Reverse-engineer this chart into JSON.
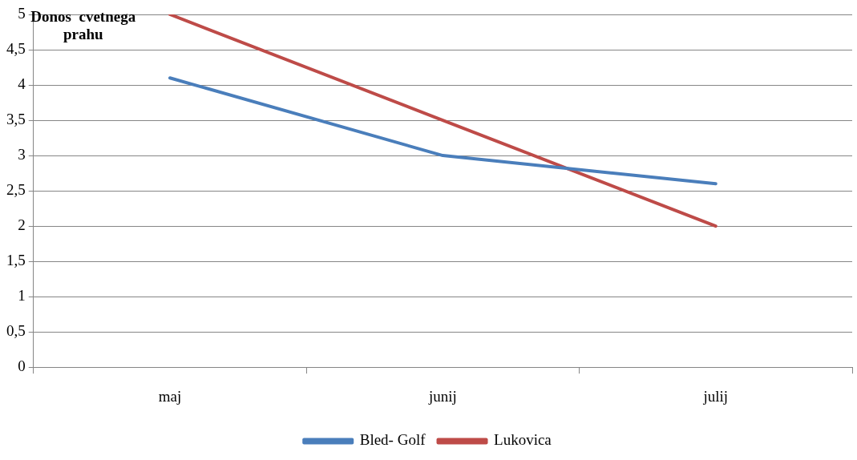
{
  "chart_data": {
    "type": "line",
    "title": "Donos  cvetnega prahu",
    "categories": [
      "maj",
      "junij",
      "julij"
    ],
    "series": [
      {
        "name": "Bled- Golf",
        "color": "#4a7ebb",
        "values": [
          4.1,
          3.0,
          2.6
        ]
      },
      {
        "name": "Lukovica",
        "color": "#be4b48",
        "values": [
          5,
          3.5,
          2.0
        ]
      }
    ],
    "ylim": [
      0,
      5
    ],
    "yticks": [
      0,
      {
        "value": 0.5,
        "label": "0,5"
      },
      1,
      {
        "value": 1.5,
        "label": "1,5"
      },
      2,
      {
        "value": 2.5,
        "label": "2,5"
      },
      3,
      {
        "value": 3.5,
        "label": "3,5"
      },
      4,
      {
        "value": 4.5,
        "label": "4,5"
      },
      5
    ],
    "grid": "y",
    "legend": "bottom",
    "marker": "none",
    "line_style": "solid"
  }
}
